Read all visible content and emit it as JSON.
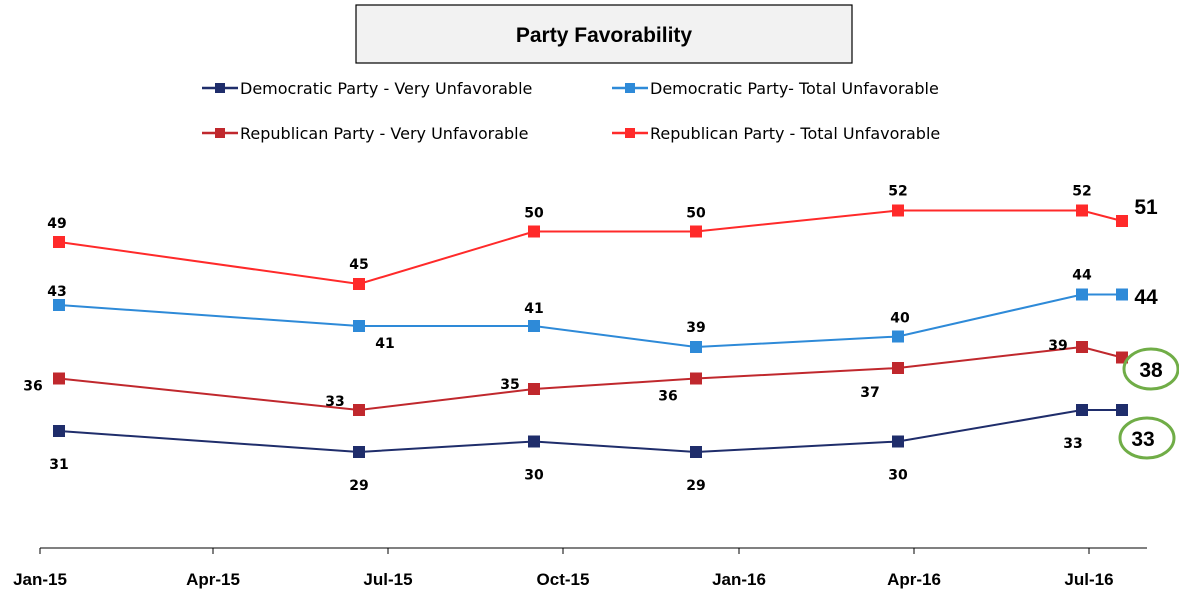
{
  "chart_data": {
    "type": "line",
    "title": "Party Favorability",
    "xlabel": "",
    "ylabel": "",
    "x_ticks": [
      "Jan-15",
      "Apr-15",
      "Jul-15",
      "Oct-15",
      "Jan-16",
      "Apr-16",
      "Jul-16"
    ],
    "x_dates": [
      "2015-01",
      "2015-06",
      "2015-09",
      "2015-12",
      "2016-03",
      "2016-07",
      "2016-07"
    ],
    "legend_position": "top",
    "grid": false,
    "series": [
      {
        "name": "Democratic Party - Very Unfavorable",
        "color": "#1f2d6b",
        "values": [
          31,
          29,
          30,
          29,
          30,
          33,
          33
        ],
        "labels": [
          "31",
          "29",
          "30",
          "29",
          "30",
          "33",
          "33"
        ]
      },
      {
        "name": "Democratic Party- Total Unfavorable",
        "color": "#2e8ad8",
        "values": [
          43,
          41,
          41,
          39,
          40,
          44,
          44
        ],
        "labels": [
          "43",
          "41",
          "41",
          "39",
          "40",
          "44",
          "44"
        ]
      },
      {
        "name": "Republican Party - Very Unfavorable",
        "color": "#c0282d",
        "values": [
          36,
          33,
          35,
          36,
          37,
          39,
          38
        ],
        "labels": [
          "36",
          "33",
          "35",
          "36",
          "37",
          "39",
          "38"
        ]
      },
      {
        "name": "Republican Party - Total Unfavorable",
        "color": "#ff2a2a",
        "values": [
          49,
          45,
          50,
          50,
          52,
          52,
          51
        ],
        "labels": [
          "49",
          "45",
          "50",
          "50",
          "52",
          "52",
          "51"
        ]
      }
    ],
    "highlighted": [
      "38",
      "33"
    ],
    "highlight_color": "#70ad47"
  }
}
